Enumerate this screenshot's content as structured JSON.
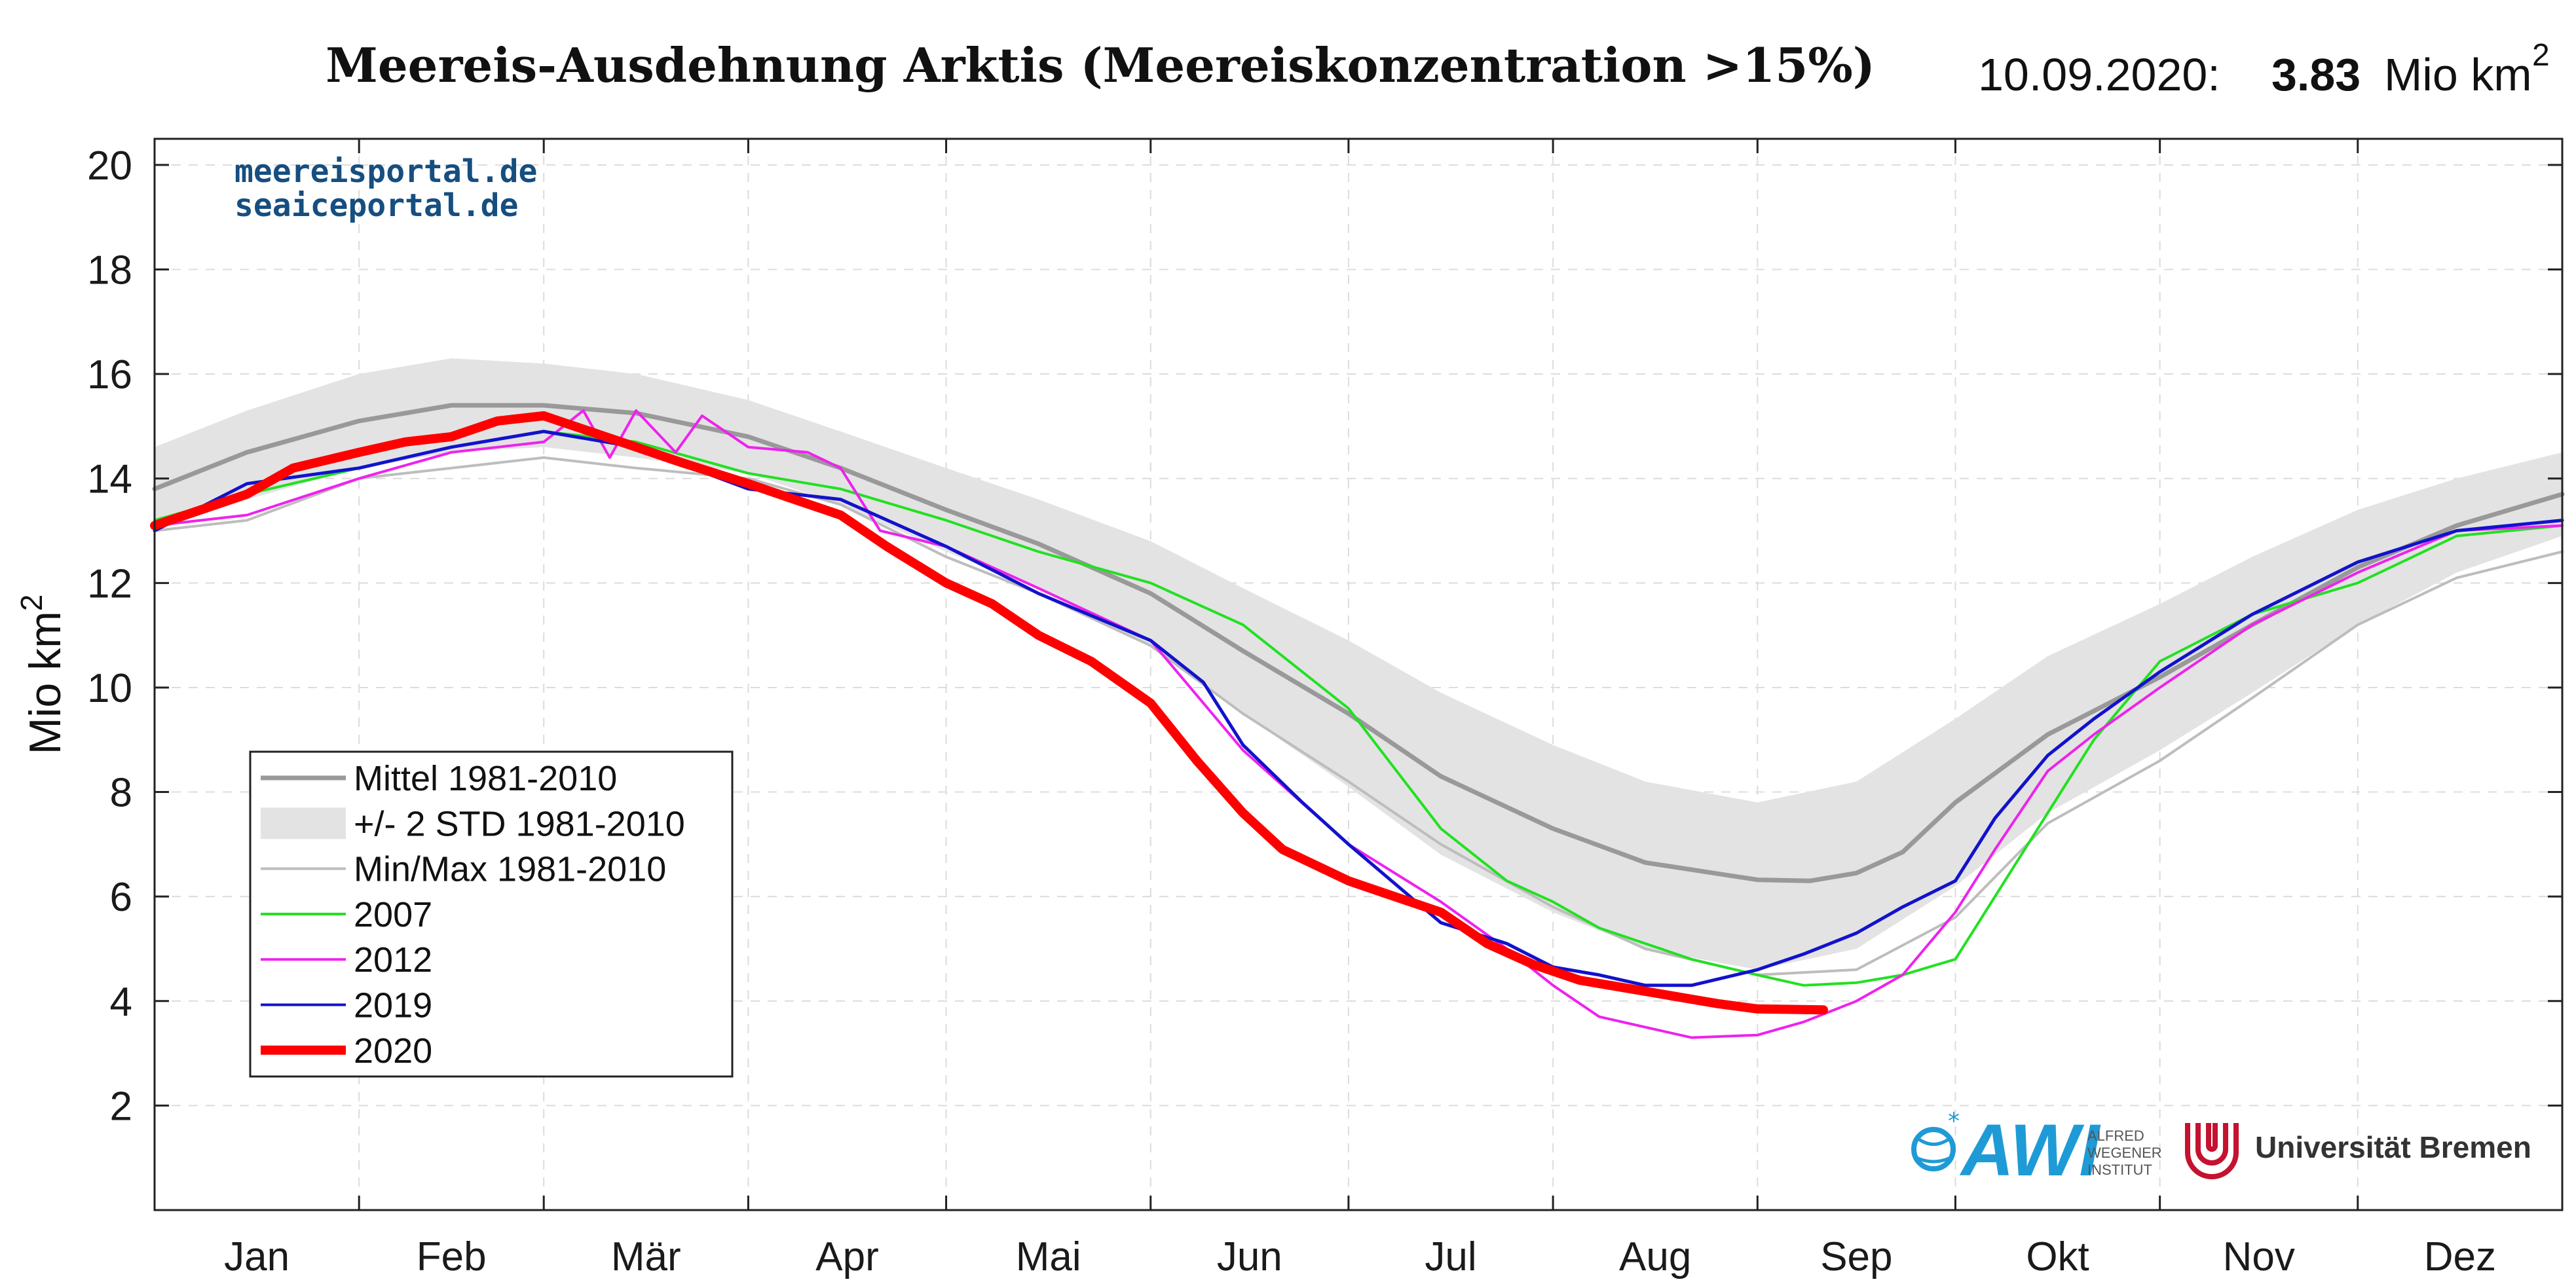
{
  "chart_data": {
    "type": "line",
    "title": "Meereis-Ausdehnung Arktis (Meereiskonzentration >15%)",
    "date_label": "10.09.2020:",
    "current_value": "3.83",
    "current_unit": "Mio km",
    "current_unit_sup": "2",
    "ylabel": "Mio km",
    "ylabel_sup": "2",
    "xlabel": "",
    "ylim": [
      0,
      20.5
    ],
    "xlim": [
      1,
      366
    ],
    "yticks": [
      2,
      4,
      6,
      8,
      10,
      12,
      14,
      16,
      18,
      20
    ],
    "month_labels": [
      "Jan",
      "Feb",
      "Mär",
      "Apr",
      "Mai",
      "Jun",
      "Jul",
      "Aug",
      "Sep",
      "Okt",
      "Nov",
      "Dez"
    ],
    "month_starts": [
      1,
      32,
      60,
      91,
      121,
      152,
      182,
      213,
      244,
      274,
      305,
      335,
      366
    ],
    "grid": true,
    "legend_position": "lower-left",
    "watermark_lines": [
      "meereisportal.de",
      "seaiceportal.de"
    ],
    "logos": {
      "awi": {
        "name": "AWI",
        "subtitle": [
          "ALFRED",
          "WEGENER",
          "INSTITUT"
        ],
        "color": "#1e9bd7"
      },
      "bremen": {
        "name": "Universität Bremen",
        "color": "#c4122f"
      }
    },
    "colors": {
      "mean": "#999999",
      "band": "#e3e3e3",
      "minmax": "#bdbdbd",
      "y2007": "#22e022",
      "y2012": "#ee22ee",
      "y2019": "#1212cc",
      "y2020": "#ff0000"
    },
    "legend": [
      {
        "label": "Mittel 1981-2010",
        "style": "mean"
      },
      {
        "label": "+/- 2 STD 1981-2010",
        "style": "band"
      },
      {
        "label": "Min/Max 1981-2010",
        "style": "minmax"
      },
      {
        "label": "2007",
        "style": "y2007"
      },
      {
        "label": "2012",
        "style": "y2012"
      },
      {
        "label": "2019",
        "style": "y2019"
      },
      {
        "label": "2020",
        "style": "y2020"
      }
    ],
    "series": [
      {
        "name": "Mittel 1981-2010",
        "key": "mean",
        "x": [
          1,
          15,
          32,
          46,
          60,
          74,
          91,
          105,
          121,
          135,
          152,
          166,
          182,
          196,
          213,
          227,
          244,
          252,
          259,
          266,
          274,
          288,
          305,
          319,
          335,
          350,
          366
        ],
        "y": [
          13.8,
          14.5,
          15.1,
          15.4,
          15.4,
          15.25,
          14.8,
          14.2,
          13.4,
          12.75,
          11.8,
          10.7,
          9.5,
          8.3,
          7.3,
          6.65,
          6.32,
          6.3,
          6.45,
          6.85,
          7.8,
          9.1,
          10.2,
          11.2,
          12.3,
          13.1,
          13.7
        ]
      },
      {
        "name": "+/- 2 STD upper",
        "key": "band_upper",
        "x": [
          1,
          15,
          32,
          46,
          60,
          74,
          91,
          105,
          121,
          135,
          152,
          166,
          182,
          196,
          213,
          227,
          244,
          259,
          274,
          288,
          305,
          319,
          335,
          350,
          366
        ],
        "y": [
          14.6,
          15.3,
          16.0,
          16.3,
          16.2,
          16.0,
          15.5,
          14.9,
          14.2,
          13.6,
          12.8,
          11.9,
          10.9,
          9.9,
          8.9,
          8.2,
          7.8,
          8.2,
          9.4,
          10.6,
          11.6,
          12.5,
          13.4,
          14.0,
          14.5
        ]
      },
      {
        "name": "+/- 2 STD lower",
        "key": "band_lower",
        "x": [
          1,
          15,
          32,
          46,
          60,
          74,
          91,
          105,
          121,
          135,
          152,
          166,
          182,
          196,
          213,
          227,
          244,
          259,
          274,
          288,
          305,
          319,
          335,
          350,
          366
        ],
        "y": [
          13.0,
          13.6,
          14.2,
          14.5,
          14.6,
          14.4,
          14.1,
          13.5,
          12.6,
          11.9,
          10.8,
          9.5,
          8.1,
          6.8,
          5.7,
          5.0,
          4.6,
          5.0,
          6.2,
          7.6,
          8.8,
          9.9,
          11.2,
          12.2,
          12.9
        ]
      },
      {
        "name": "Min 1981-2010",
        "key": "min",
        "x": [
          1,
          15,
          32,
          46,
          60,
          74,
          91,
          105,
          121,
          135,
          152,
          166,
          182,
          196,
          213,
          227,
          244,
          259,
          274,
          288,
          305,
          319,
          335,
          350,
          366
        ],
        "y": [
          13.0,
          13.2,
          14.0,
          14.2,
          14.4,
          14.2,
          14.0,
          13.5,
          12.5,
          11.8,
          10.8,
          9.5,
          8.2,
          7.0,
          5.8,
          5.0,
          4.5,
          4.6,
          5.6,
          7.4,
          8.6,
          9.8,
          11.2,
          12.1,
          12.6
        ]
      },
      {
        "name": "2007",
        "key": "y2007",
        "x": [
          1,
          15,
          32,
          46,
          60,
          74,
          91,
          105,
          121,
          135,
          152,
          166,
          182,
          196,
          206,
          213,
          220,
          227,
          234,
          244,
          251,
          259,
          266,
          274,
          280,
          288,
          295,
          305,
          319,
          335,
          350,
          366
        ],
        "y": [
          13.2,
          13.7,
          14.2,
          14.6,
          14.9,
          14.7,
          14.1,
          13.8,
          13.2,
          12.6,
          12.0,
          11.2,
          9.6,
          7.3,
          6.3,
          5.9,
          5.4,
          5.1,
          4.8,
          4.5,
          4.3,
          4.35,
          4.5,
          4.8,
          6.0,
          7.6,
          9.0,
          10.5,
          11.4,
          12.0,
          12.9,
          13.1
        ]
      },
      {
        "name": "2012",
        "key": "y2012",
        "x": [
          1,
          15,
          32,
          46,
          60,
          66,
          70,
          74,
          80,
          84,
          91,
          100,
          105,
          111,
          121,
          135,
          152,
          166,
          182,
          196,
          206,
          213,
          220,
          227,
          234,
          244,
          251,
          259,
          266,
          274,
          280,
          288,
          295,
          305,
          319,
          335,
          350,
          366
        ],
        "y": [
          13.1,
          13.3,
          14.0,
          14.5,
          14.7,
          15.3,
          14.4,
          15.3,
          14.5,
          15.2,
          14.6,
          14.5,
          14.2,
          13.0,
          12.7,
          11.9,
          10.9,
          8.8,
          7.0,
          5.9,
          5.0,
          4.3,
          3.7,
          3.5,
          3.3,
          3.35,
          3.6,
          4.0,
          4.5,
          5.7,
          6.9,
          8.4,
          9.1,
          10.0,
          11.2,
          12.2,
          13.0,
          13.1
        ]
      },
      {
        "name": "2019",
        "key": "y2019",
        "x": [
          1,
          15,
          32,
          46,
          60,
          74,
          91,
          105,
          121,
          135,
          152,
          160,
          166,
          175,
          182,
          196,
          206,
          213,
          220,
          227,
          234,
          244,
          251,
          259,
          266,
          274,
          280,
          288,
          295,
          305,
          319,
          335,
          350,
          366
        ],
        "y": [
          13.0,
          13.9,
          14.2,
          14.6,
          14.9,
          14.6,
          13.8,
          13.6,
          12.7,
          11.8,
          10.9,
          10.1,
          8.9,
          7.8,
          7.0,
          5.5,
          5.1,
          4.65,
          4.5,
          4.3,
          4.3,
          4.6,
          4.9,
          5.3,
          5.8,
          6.3,
          7.5,
          8.7,
          9.4,
          10.3,
          11.4,
          12.4,
          13.0,
          13.2
        ]
      },
      {
        "name": "2020",
        "key": "y2020",
        "x": [
          1,
          8,
          15,
          22,
          32,
          39,
          46,
          53,
          60,
          67,
          74,
          81,
          91,
          98,
          105,
          112,
          121,
          128,
          135,
          143,
          152,
          159,
          166,
          172,
          182,
          189,
          196,
          203,
          210,
          217,
          224,
          231,
          238,
          244,
          254
        ],
        "y": [
          13.1,
          13.4,
          13.7,
          14.2,
          14.5,
          14.7,
          14.8,
          15.1,
          15.2,
          14.9,
          14.6,
          14.3,
          13.9,
          13.6,
          13.3,
          12.7,
          12.0,
          11.6,
          11.0,
          10.5,
          9.7,
          8.6,
          7.6,
          6.9,
          6.3,
          6.0,
          5.7,
          5.1,
          4.7,
          4.4,
          4.25,
          4.1,
          3.95,
          3.85,
          3.83
        ]
      }
    ]
  }
}
